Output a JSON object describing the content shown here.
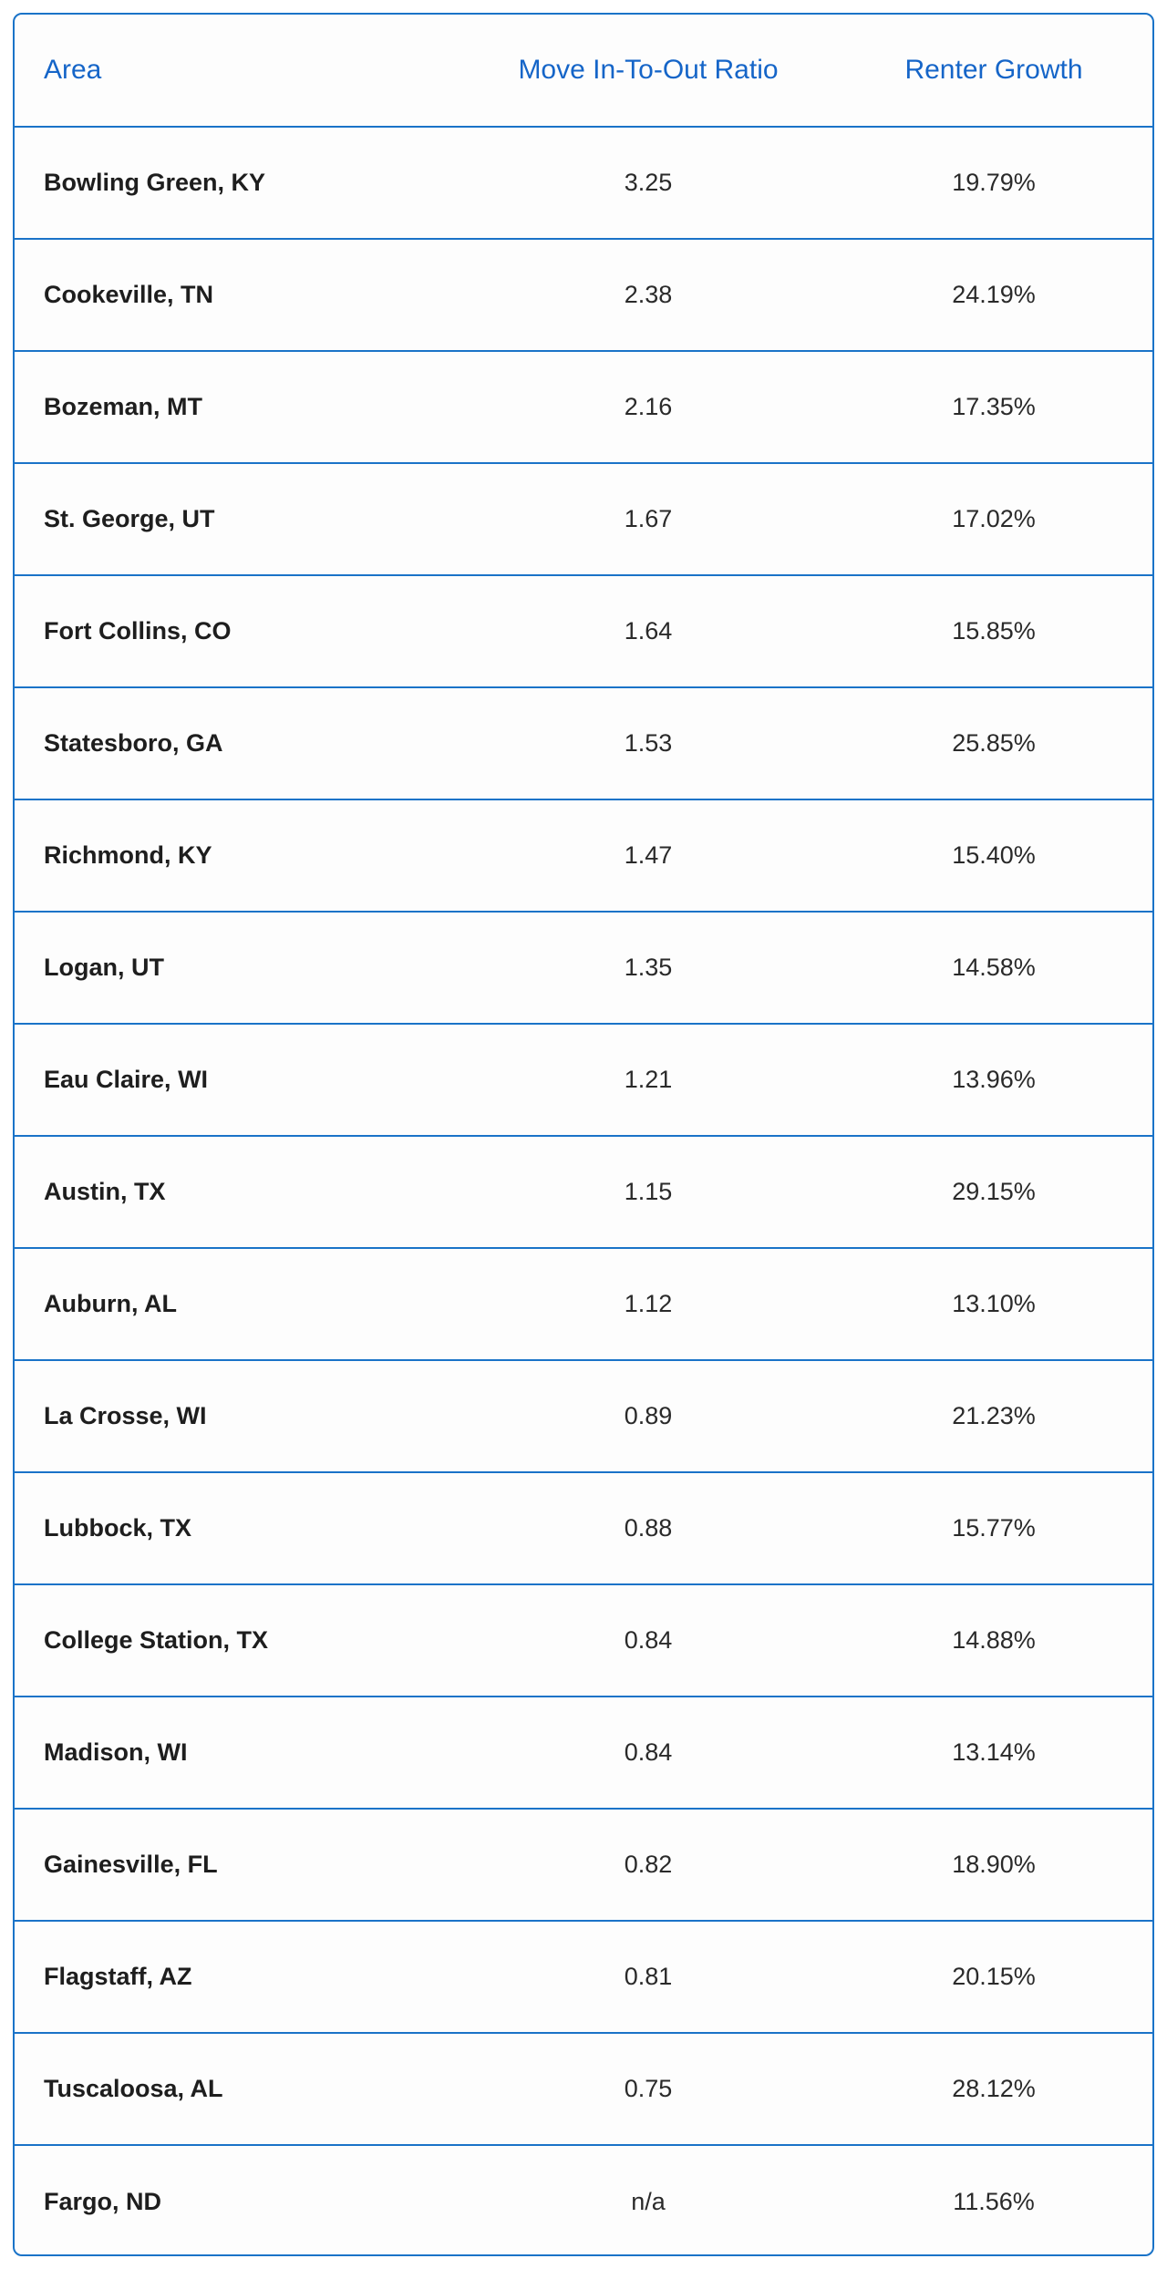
{
  "table": {
    "headers": {
      "area": "Area",
      "ratio": "Move In-To-Out Ratio",
      "growth": "Renter Growth"
    },
    "rows": [
      {
        "area": "Bowling Green, KY",
        "ratio": "3.25",
        "growth": "19.79%"
      },
      {
        "area": "Cookeville, TN",
        "ratio": "2.38",
        "growth": "24.19%"
      },
      {
        "area": "Bozeman, MT",
        "ratio": "2.16",
        "growth": "17.35%"
      },
      {
        "area": "St. George, UT",
        "ratio": "1.67",
        "growth": "17.02%"
      },
      {
        "area": "Fort Collins, CO",
        "ratio": "1.64",
        "growth": "15.85%"
      },
      {
        "area": "Statesboro, GA",
        "ratio": "1.53",
        "growth": "25.85%"
      },
      {
        "area": "Richmond, KY",
        "ratio": "1.47",
        "growth": "15.40%"
      },
      {
        "area": "Logan, UT",
        "ratio": "1.35",
        "growth": "14.58%"
      },
      {
        "area": "Eau Claire, WI",
        "ratio": "1.21",
        "growth": "13.96%"
      },
      {
        "area": "Austin, TX",
        "ratio": "1.15",
        "growth": "29.15%"
      },
      {
        "area": "Auburn, AL",
        "ratio": "1.12",
        "growth": "13.10%"
      },
      {
        "area": "La Crosse, WI",
        "ratio": "0.89",
        "growth": "21.23%"
      },
      {
        "area": "Lubbock, TX",
        "ratio": "0.88",
        "growth": "15.77%"
      },
      {
        "area": "College Station, TX",
        "ratio": "0.84",
        "growth": "14.88%"
      },
      {
        "area": "Madison, WI",
        "ratio": "0.84",
        "growth": "13.14%"
      },
      {
        "area": "Gainesville, FL",
        "ratio": "0.82",
        "growth": "18.90%"
      },
      {
        "area": "Flagstaff, AZ",
        "ratio": "0.81",
        "growth": "20.15%"
      },
      {
        "area": "Tuscaloosa, AL",
        "ratio": "0.75",
        "growth": "28.12%"
      },
      {
        "area": "Fargo, ND",
        "ratio": "n/a",
        "growth": "11.56%"
      }
    ]
  },
  "colors": {
    "accent": "#1565c8",
    "border": "#1a73c8",
    "text": "#1e1e1e"
  }
}
